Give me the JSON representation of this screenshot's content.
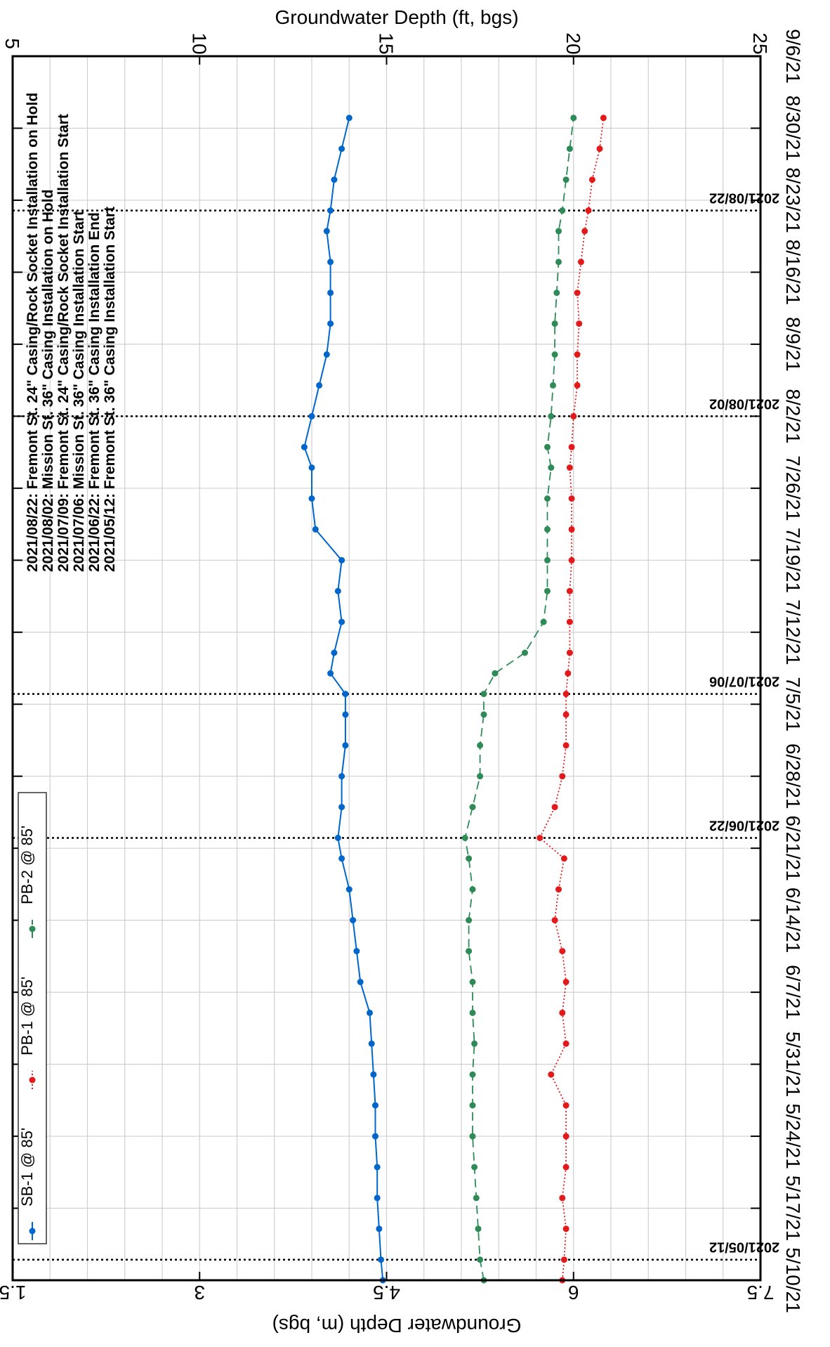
{
  "chart_data": {
    "type": "line",
    "orientation": "rotated-90-clockwise",
    "top_axis": {
      "label": "Groundwater Depth (ft, bgs)",
      "ticks": [
        5,
        10,
        15,
        20,
        25
      ],
      "range": [
        5,
        25
      ]
    },
    "bottom_axis": {
      "label": "Groundwater Depth (m, bgs)",
      "ticks": [
        "1.5",
        "3",
        "4.5",
        "6",
        "7.5"
      ],
      "range": [
        1.5,
        7.5
      ]
    },
    "date_axis": {
      "ticks": [
        "5/10/21",
        "5/17/21",
        "5/24/21",
        "5/31/21",
        "6/7/21",
        "6/14/21",
        "6/21/21",
        "6/28/21",
        "7/5/21",
        "7/12/21",
        "7/19/21",
        "7/26/21",
        "8/2/21",
        "8/9/21",
        "8/16/21",
        "8/23/21",
        "8/30/21",
        "9/6/21"
      ],
      "range": [
        "2021-05-10",
        "2021-09-06"
      ]
    },
    "markers": [
      {
        "date": "2021-05-12",
        "label": "2021/05/12"
      },
      {
        "date": "2021-06-22",
        "label": "2021/06/22"
      },
      {
        "date": "2021-07-06",
        "label": "2021/07/06"
      },
      {
        "date": "2021-08-02",
        "label": "2021/08/02"
      },
      {
        "date": "2021-08-22",
        "label": "2021/08/22"
      }
    ],
    "annotations": [
      "2021/05/12:  Fremont St. 36\" Casing Installation Start",
      "2021/06/22:  Fremont St. 36\" Casing Installation End",
      "2021/07/06:  Mission St.  36\" Casing Installation Start",
      "2021/07/09:  Fremont St. 24\" Casing/Rock Socket Installation Start",
      "2021/08/02:  Mission St.  36\" Casing Installation on Hold",
      "2021/08/22:  Fremont St. 24\" Casing/Rock Socket Installation on Hold"
    ],
    "grid": true,
    "series": [
      {
        "name": "SB-1 @ 85'",
        "color": "#0066cc",
        "line_style": "solid",
        "x": [
          "2021-05-10",
          "2021-05-12",
          "2021-05-15",
          "2021-05-18",
          "2021-05-21",
          "2021-05-24",
          "2021-05-27",
          "2021-05-30",
          "2021-06-02",
          "2021-06-05",
          "2021-06-08",
          "2021-06-11",
          "2021-06-14",
          "2021-06-17",
          "2021-06-20",
          "2021-06-22",
          "2021-06-25",
          "2021-06-28",
          "2021-07-01",
          "2021-07-04",
          "2021-07-06",
          "2021-07-08",
          "2021-07-10",
          "2021-07-13",
          "2021-07-16",
          "2021-07-19",
          "2021-07-22",
          "2021-07-25",
          "2021-07-28",
          "2021-07-30",
          "2021-08-02",
          "2021-08-05",
          "2021-08-08",
          "2021-08-11",
          "2021-08-14",
          "2021-08-17",
          "2021-08-20",
          "2021-08-22",
          "2021-08-25",
          "2021-08-28",
          "2021-08-31"
        ],
        "y": [
          14.9,
          14.85,
          14.8,
          14.75,
          14.75,
          14.7,
          14.7,
          14.65,
          14.6,
          14.55,
          14.3,
          14.2,
          14.1,
          14.0,
          13.8,
          13.7,
          13.8,
          13.8,
          13.9,
          13.9,
          13.9,
          13.5,
          13.6,
          13.8,
          13.7,
          13.8,
          13.1,
          13.0,
          13.0,
          12.8,
          13.0,
          13.2,
          13.4,
          13.5,
          13.5,
          13.5,
          13.4,
          13.5,
          13.6,
          13.8,
          14.0
        ]
      },
      {
        "name": "PB-1 @ 85'",
        "color": "#e31a1c",
        "line_style": "dotted",
        "x": [
          "2021-05-10",
          "2021-05-12",
          "2021-05-15",
          "2021-05-18",
          "2021-05-21",
          "2021-05-24",
          "2021-05-27",
          "2021-05-30",
          "2021-06-02",
          "2021-06-05",
          "2021-06-08",
          "2021-06-11",
          "2021-06-14",
          "2021-06-17",
          "2021-06-20",
          "2021-06-22",
          "2021-06-25",
          "2021-06-28",
          "2021-07-01",
          "2021-07-04",
          "2021-07-06",
          "2021-07-08",
          "2021-07-10",
          "2021-07-13",
          "2021-07-16",
          "2021-07-19",
          "2021-07-22",
          "2021-07-25",
          "2021-07-28",
          "2021-07-30",
          "2021-08-02",
          "2021-08-05",
          "2021-08-08",
          "2021-08-11",
          "2021-08-14",
          "2021-08-17",
          "2021-08-20",
          "2021-08-22",
          "2021-08-25",
          "2021-08-28",
          "2021-08-31"
        ],
        "y": [
          19.7,
          19.75,
          19.8,
          19.7,
          19.8,
          19.8,
          19.8,
          19.4,
          19.8,
          19.7,
          19.8,
          19.7,
          19.5,
          19.6,
          19.75,
          19.1,
          19.5,
          19.7,
          19.8,
          19.8,
          19.8,
          19.85,
          19.9,
          19.9,
          19.9,
          19.95,
          19.95,
          19.95,
          19.9,
          19.95,
          20.0,
          20.1,
          20.1,
          20.15,
          20.1,
          20.2,
          20.3,
          20.4,
          20.5,
          20.7,
          20.8
        ]
      },
      {
        "name": "PB-2 @ 85'",
        "color": "#2e8b57",
        "line_style": "dashed",
        "x": [
          "2021-05-10",
          "2021-05-12",
          "2021-05-15",
          "2021-05-18",
          "2021-05-21",
          "2021-05-24",
          "2021-05-27",
          "2021-05-30",
          "2021-06-02",
          "2021-06-05",
          "2021-06-08",
          "2021-06-11",
          "2021-06-14",
          "2021-06-17",
          "2021-06-20",
          "2021-06-22",
          "2021-06-25",
          "2021-06-28",
          "2021-07-01",
          "2021-07-04",
          "2021-07-06",
          "2021-07-08",
          "2021-07-10",
          "2021-07-13",
          "2021-07-16",
          "2021-07-19",
          "2021-07-22",
          "2021-07-25",
          "2021-07-28",
          "2021-07-30",
          "2021-08-02",
          "2021-08-05",
          "2021-08-08",
          "2021-08-11",
          "2021-08-14",
          "2021-08-17",
          "2021-08-20",
          "2021-08-22",
          "2021-08-25",
          "2021-08-28",
          "2021-08-31"
        ],
        "y": [
          17.6,
          17.5,
          17.45,
          17.4,
          17.35,
          17.3,
          17.3,
          17.3,
          17.35,
          17.3,
          17.3,
          17.2,
          17.2,
          17.3,
          17.2,
          17.1,
          17.3,
          17.5,
          17.5,
          17.6,
          17.6,
          17.9,
          18.7,
          19.2,
          19.3,
          19.3,
          19.3,
          19.3,
          19.4,
          19.3,
          19.4,
          19.45,
          19.5,
          19.5,
          19.55,
          19.6,
          19.6,
          19.7,
          19.8,
          19.9,
          20.0
        ]
      }
    ]
  }
}
